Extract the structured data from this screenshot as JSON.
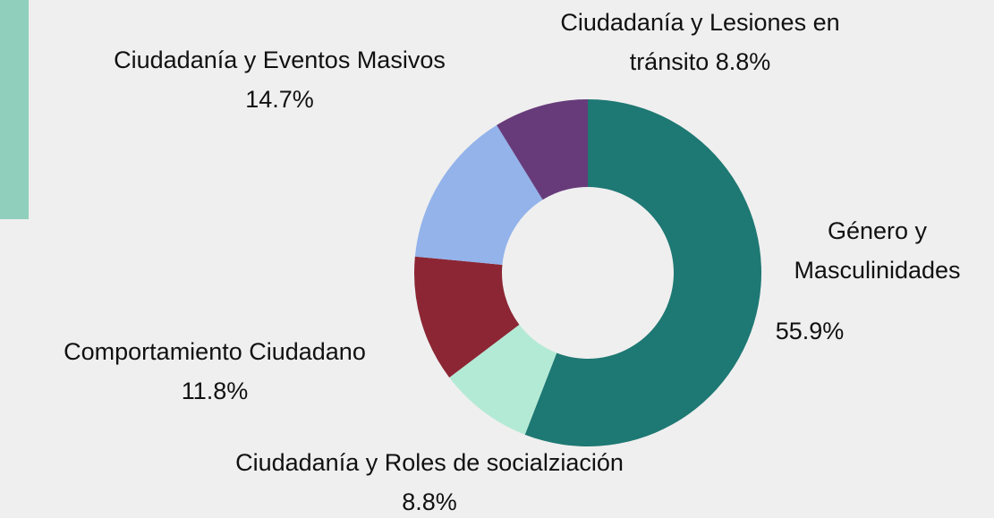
{
  "chart_data": {
    "type": "donut",
    "categories": [
      "Género y Masculinidades",
      "Ciudadanía y Roles de socialziación",
      "Comportamiento Ciudadano",
      "Ciudadanía y Eventos Masivos",
      "Ciudadanía y Lesiones en tránsito"
    ],
    "values": [
      55.9,
      8.8,
      11.8,
      14.7,
      8.8
    ],
    "value_labels": [
      "55.9%",
      "8.8%",
      "11.8%",
      "14.7%",
      "8.8%"
    ],
    "colors": [
      "#1e7873",
      "#b3ead6",
      "#8c2634",
      "#93b3ea",
      "#673b7a"
    ]
  }
}
